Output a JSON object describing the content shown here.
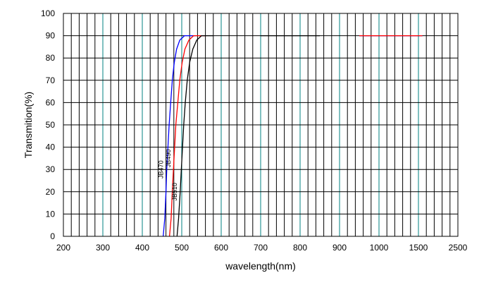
{
  "chart_data": {
    "type": "line",
    "xlabel": "wavelength(nm)",
    "ylabel": "Transmition(%)",
    "x_ticks": [
      "200",
      "300",
      "400",
      "500",
      "600",
      "700",
      "800",
      "900",
      "1000",
      "1500",
      "2500"
    ],
    "y_ticks": [
      "0",
      "10",
      "20",
      "30",
      "40",
      "50",
      "60",
      "70",
      "80",
      "90",
      "100"
    ],
    "ylim": [
      0,
      100
    ],
    "grid": true,
    "colors": {
      "grid_vertical_major": "#000000",
      "grid_vertical_minor": "#008080",
      "grid_horizontal": "#000000"
    },
    "series": [
      {
        "name": "JB470",
        "color": "#0000ff",
        "points": [
          [
            453,
            0
          ],
          [
            457,
            8
          ],
          [
            460,
            20
          ],
          [
            462,
            30
          ],
          [
            465,
            40
          ],
          [
            468,
            50
          ],
          [
            472,
            60
          ],
          [
            476,
            70
          ],
          [
            481,
            78
          ],
          [
            487,
            84
          ],
          [
            495,
            88
          ],
          [
            507,
            90
          ],
          [
            535,
            90
          ]
        ],
        "tail": [
          [
            950,
            90
          ],
          [
            1600,
            90
          ]
        ]
      },
      {
        "name": "JB490",
        "color": "#ff0000",
        "points": [
          [
            469,
            0
          ],
          [
            473,
            8
          ],
          [
            476,
            20
          ],
          [
            479,
            30
          ],
          [
            482,
            40
          ],
          [
            485,
            50
          ],
          [
            490,
            60
          ],
          [
            495,
            70
          ],
          [
            501,
            78
          ],
          [
            508,
            84
          ],
          [
            518,
            88
          ],
          [
            530,
            90
          ],
          [
            560,
            90
          ]
        ],
        "tail": [
          [
            950,
            90
          ],
          [
            1600,
            90
          ]
        ]
      },
      {
        "name": "JB510",
        "color": "#000000",
        "points": [
          [
            488,
            0
          ],
          [
            492,
            8
          ],
          [
            496,
            20
          ],
          [
            499,
            30
          ],
          [
            502,
            40
          ],
          [
            505,
            50
          ],
          [
            509,
            60
          ],
          [
            514,
            70
          ],
          [
            520,
            78
          ],
          [
            528,
            84
          ],
          [
            538,
            88
          ],
          [
            550,
            90
          ],
          [
            580,
            90
          ]
        ],
        "tail": [
          [
            700,
            90
          ],
          [
            850,
            90
          ]
        ]
      }
    ]
  }
}
